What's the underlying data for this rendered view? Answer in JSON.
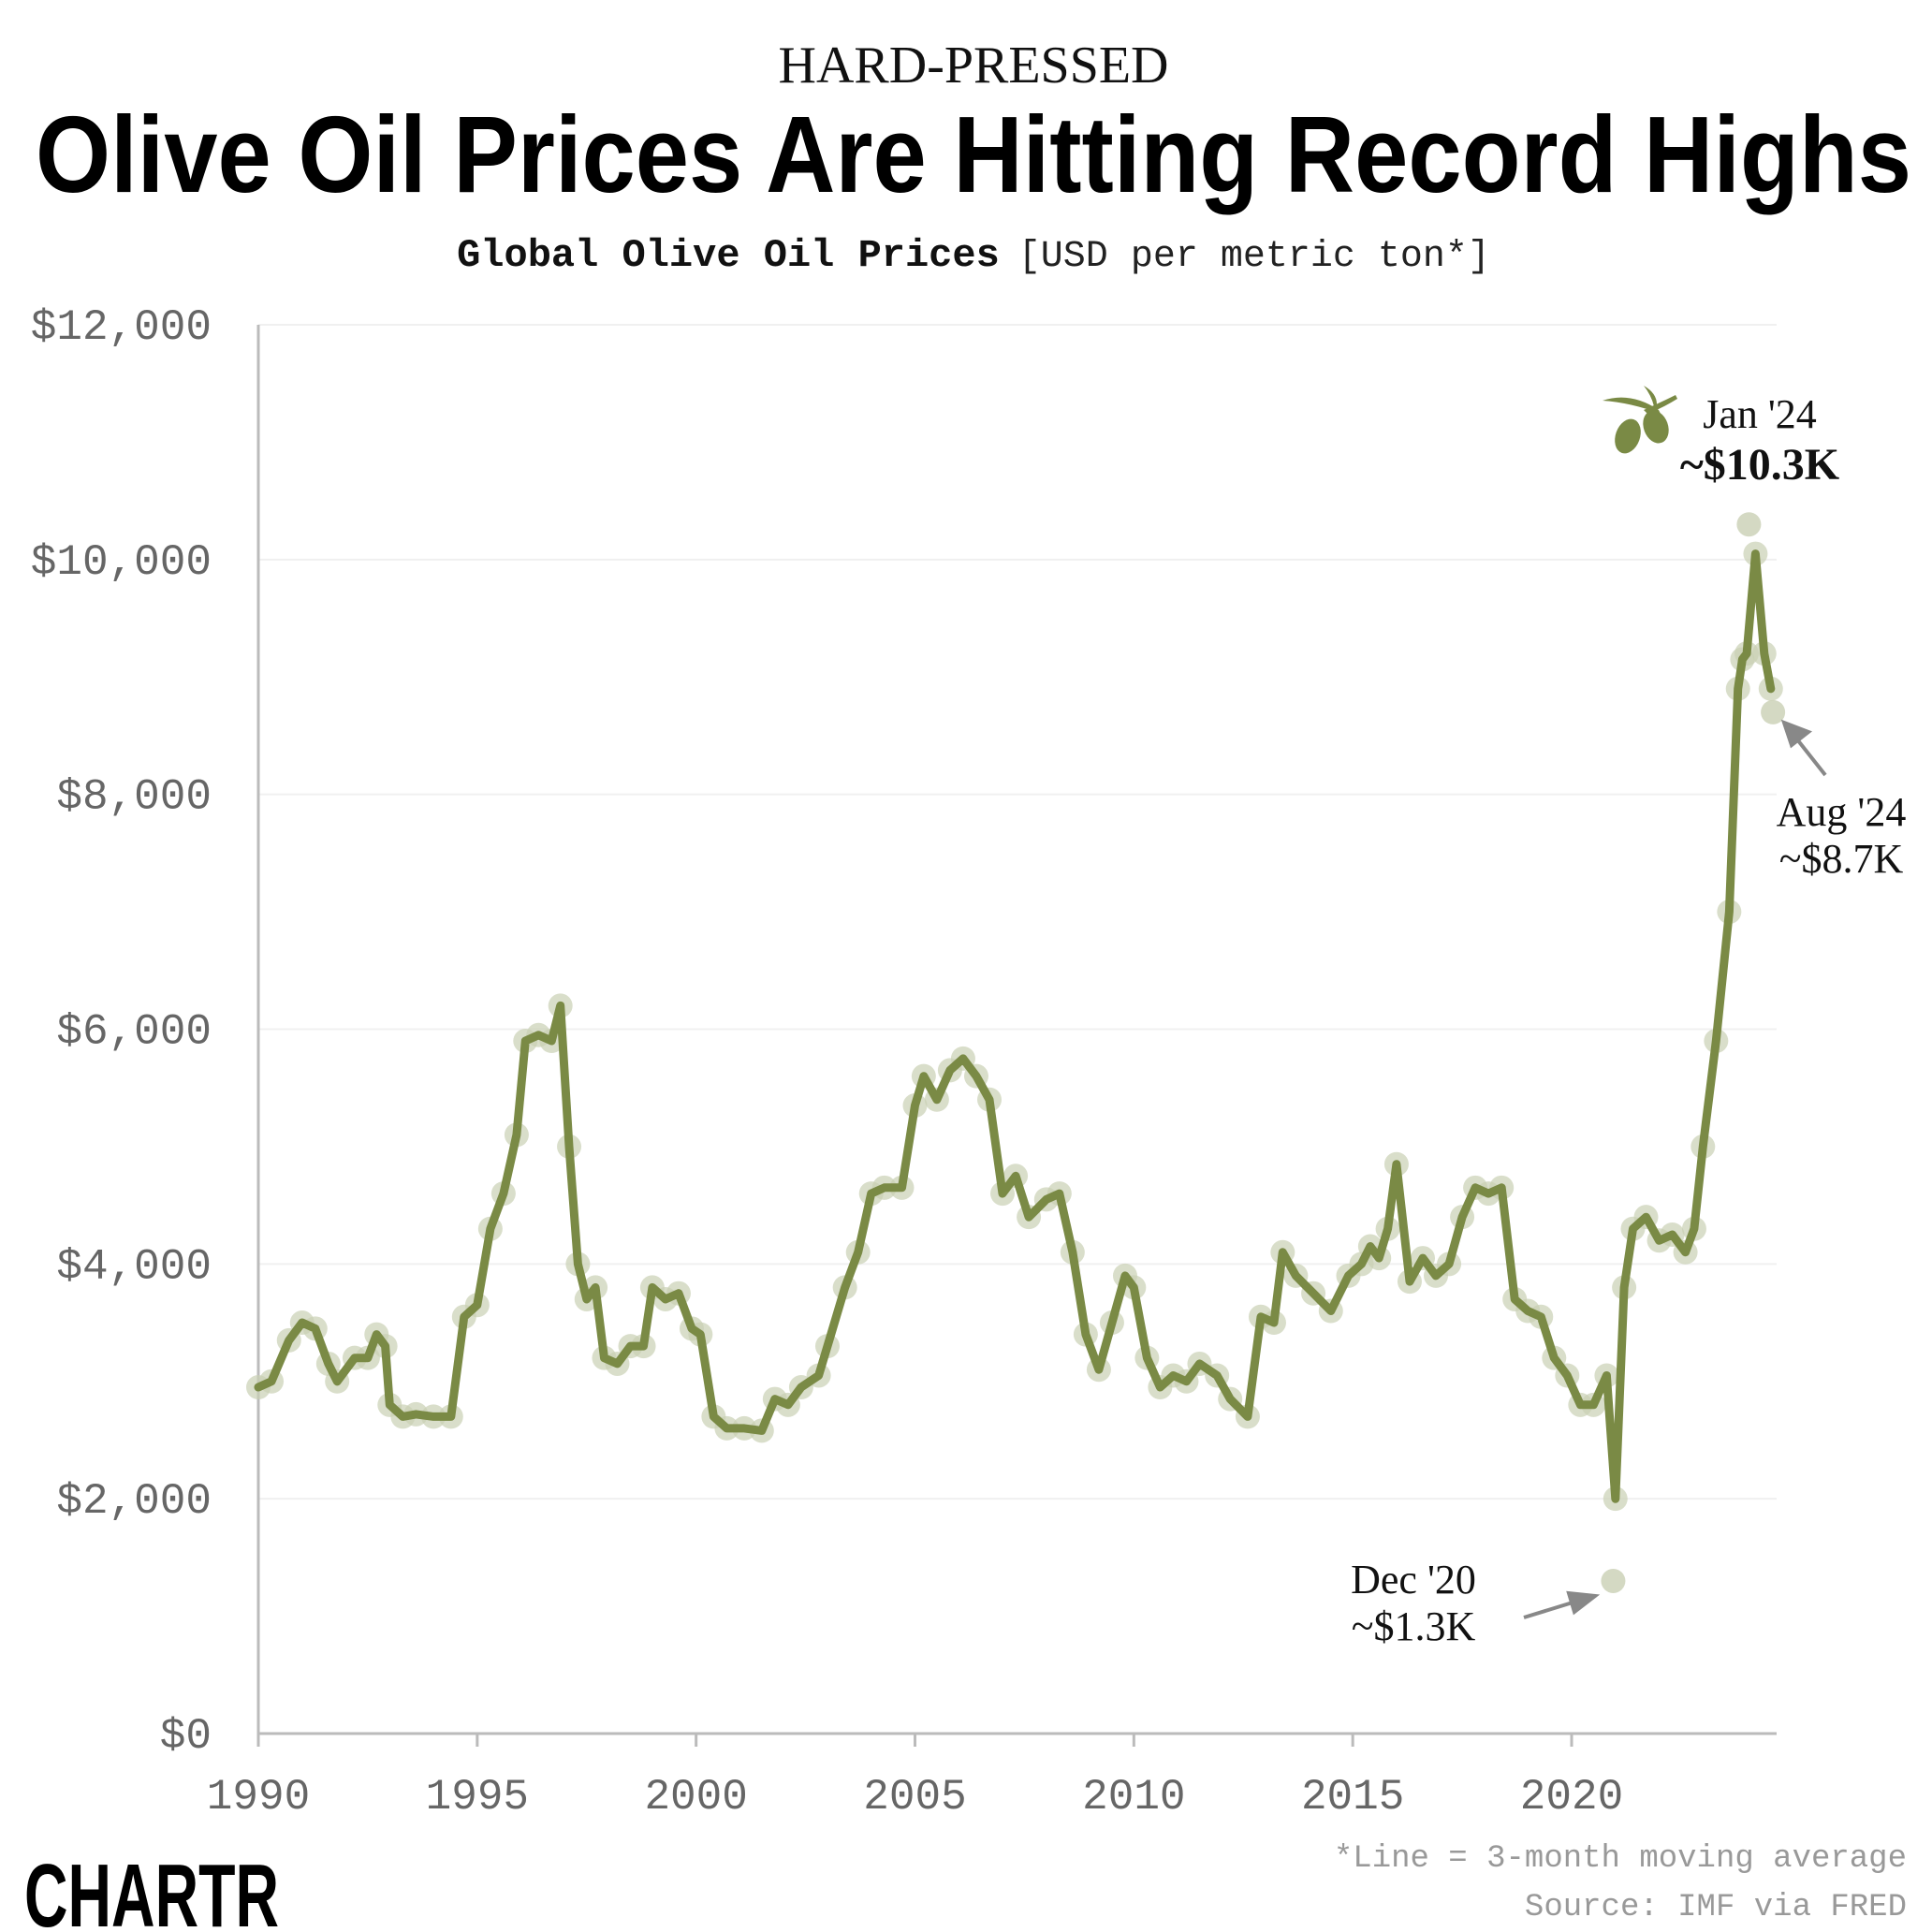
{
  "header": {
    "kicker": "HARD-PRESSED",
    "title": "Olive Oil Prices Are Hitting Record Highs",
    "subtitle_bold": "Global Olive Oil Prices",
    "subtitle_unit": "[USD per metric ton*]"
  },
  "chart_data": {
    "type": "line",
    "title": "Global Olive Oil Prices",
    "ylabel": "USD per metric ton",
    "xlabel": "",
    "xlim": [
      1990,
      2024.6
    ],
    "ylim": [
      0,
      12000
    ],
    "grid": true,
    "line_color": "#7a8a45",
    "dot_color": "#c9d0b4",
    "x_ticks": [
      "1990",
      "1995",
      "2000",
      "2005",
      "2010",
      "2015",
      "2020"
    ],
    "y_ticks": [
      "$0",
      "$2,000",
      "$4,000",
      "$6,000",
      "$8,000",
      "$10,000",
      "$12,000"
    ],
    "series": [
      {
        "x": [
          1990.0,
          1990.3,
          1990.7,
          1991.0,
          1991.3,
          1991.6,
          1991.8,
          1992.2,
          1992.5,
          1992.7,
          1992.9,
          1993.0,
          1993.3,
          1993.6,
          1994.0,
          1994.4,
          1994.7,
          1995.0,
          1995.3,
          1995.6,
          1995.9,
          1996.1,
          1996.4,
          1996.7,
          1996.9,
          1997.1,
          1997.3,
          1997.5,
          1997.7,
          1997.9,
          1998.2,
          1998.5,
          1998.8,
          1999.0,
          1999.3,
          1999.6,
          1999.9,
          2000.1,
          2000.4,
          2000.7,
          2001.1,
          2001.5,
          2001.8,
          2002.1,
          2002.4,
          2002.8,
          2003.0,
          2003.4,
          2003.7,
          2004.0,
          2004.3,
          2004.7,
          2005.0,
          2005.2,
          2005.5,
          2005.8,
          2006.1,
          2006.4,
          2006.7,
          2007.0,
          2007.3,
          2007.6,
          2008.0,
          2008.3,
          2008.6,
          2008.9,
          2009.2,
          2009.5,
          2009.8,
          2010.0,
          2010.3,
          2010.6,
          2010.9,
          2011.2,
          2011.5,
          2011.9,
          2012.2,
          2012.6,
          2012.9,
          2013.2,
          2013.4,
          2013.7,
          2014.1,
          2014.5,
          2014.9,
          2015.2,
          2015.4,
          2015.6,
          2015.8,
          2016.0,
          2016.3,
          2016.6,
          2016.9,
          2017.2,
          2017.5,
          2017.8,
          2018.1,
          2018.4,
          2018.7,
          2019.0,
          2019.3,
          2019.6,
          2019.9,
          2020.2,
          2020.5,
          2020.8,
          2021.0,
          2021.2,
          2021.4,
          2021.7,
          2022.0,
          2022.3,
          2022.6,
          2022.8,
          2023.0,
          2023.3,
          2023.6,
          2023.8,
          2023.9,
          2024.0,
          2024.2,
          2024.4,
          2024.55
        ],
        "y": [
          2950,
          3000,
          3350,
          3500,
          3450,
          3150,
          3000,
          3200,
          3200,
          3400,
          3300,
          2800,
          2700,
          2720,
          2700,
          2700,
          3550,
          3650,
          4300,
          4600,
          5100,
          5900,
          5950,
          5900,
          6200,
          5000,
          4000,
          3700,
          3800,
          3200,
          3150,
          3300,
          3300,
          3800,
          3700,
          3750,
          3450,
          3400,
          2700,
          2600,
          2600,
          2580,
          2850,
          2800,
          2950,
          3050,
          3300,
          3800,
          4100,
          4600,
          4650,
          4650,
          5350,
          5600,
          5400,
          5650,
          5750,
          5600,
          5400,
          4600,
          4750,
          4400,
          4550,
          4600,
          4100,
          3400,
          3100,
          3500,
          3900,
          3800,
          3200,
          2950,
          3050,
          3000,
          3150,
          3050,
          2850,
          2700,
          3550,
          3500,
          4100,
          3900,
          3750,
          3600,
          3900,
          4000,
          4150,
          4050,
          4300,
          4850,
          3850,
          4050,
          3900,
          4000,
          4400,
          4650,
          4600,
          4650,
          3700,
          3600,
          3550,
          3200,
          3050,
          2800,
          2800,
          3050,
          2000,
          3800,
          4300,
          4400,
          4200,
          4250,
          4100,
          4300,
          5000,
          5900,
          7000,
          8900,
          9150,
          9200,
          10050,
          9200,
          8900
        ]
      }
    ],
    "highlights": [
      {
        "x": 2020.95,
        "y": 1300,
        "label": "Dec '20",
        "value": "~$1.3K"
      },
      {
        "x": 2024.05,
        "y": 10300,
        "label": "Jan '24",
        "value": "~$10.3K"
      },
      {
        "x": 2024.6,
        "y": 8700,
        "label": "Aug '24",
        "value": "~$8.7K"
      }
    ]
  },
  "footer": {
    "note": "*Line = 3-month moving average",
    "source": "Source: IMF via FRED",
    "logo": "CHARTR"
  }
}
